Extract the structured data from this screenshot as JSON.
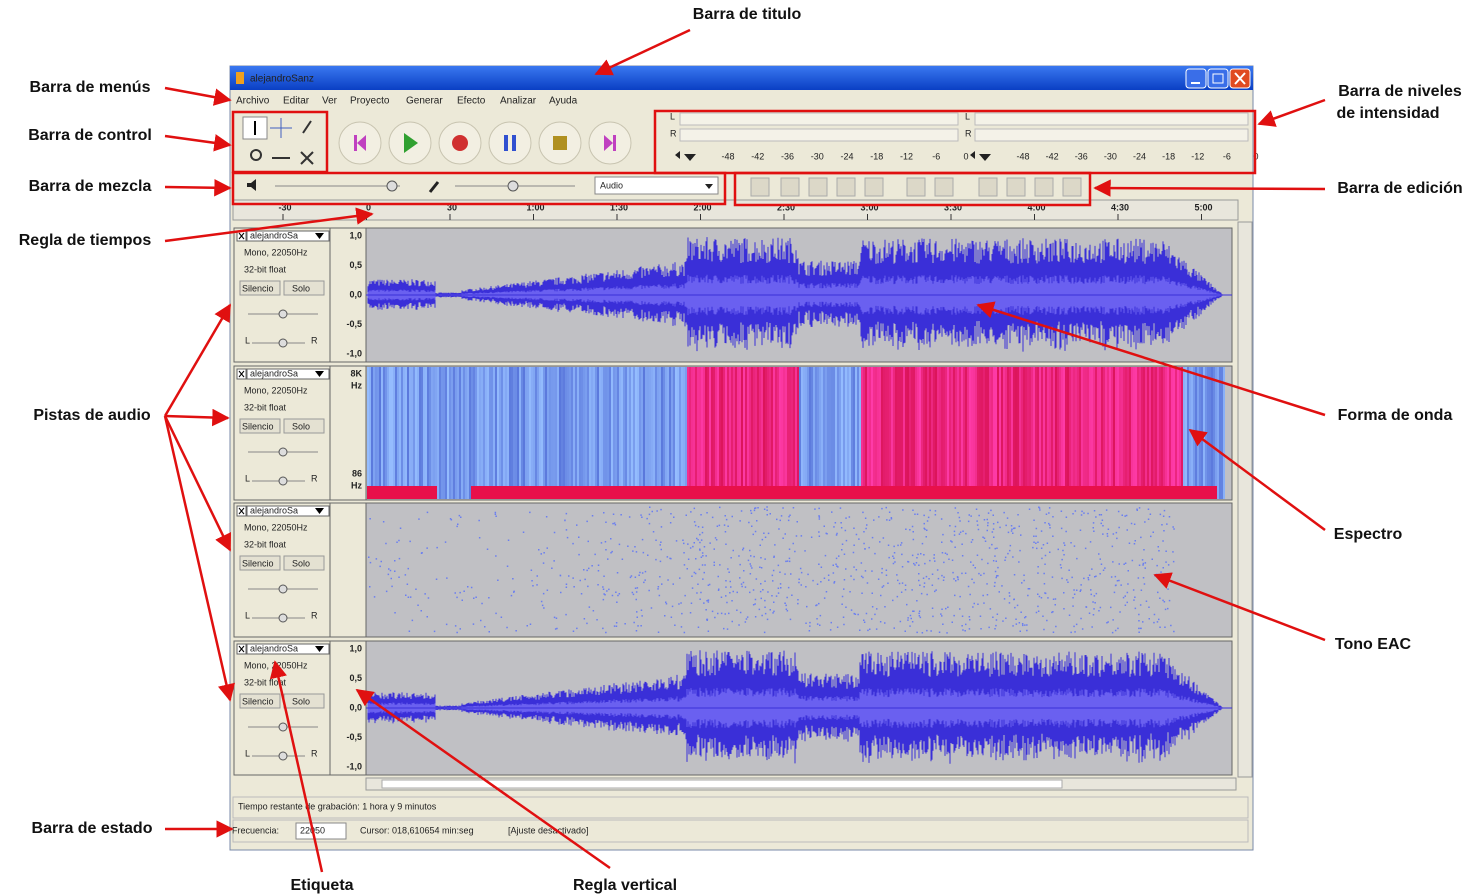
{
  "annotations": {
    "title_bar": "Barra de titulo",
    "menu_bar": "Barra de menús",
    "control_bar": "Barra de control",
    "mixer_bar": "Barra de mezcla",
    "time_ruler": "Regla de tiempos",
    "audio_tracks": "Pistas de audio",
    "status_bar": "Barra de estado",
    "label": "Etiqueta",
    "vertical_ruler": "Regla vertical",
    "meter_bar": [
      "Barra de niveles",
      "de intensidad"
    ],
    "edit_bar": "Barra de edición",
    "waveform": "Forma de onda",
    "spectrum": "Espectro",
    "eac_tone": "Tono EAC"
  },
  "window": {
    "title": "alejandroSanz",
    "menu": [
      "Archivo",
      "Editar",
      "Ver",
      "Proyecto",
      "Generar",
      "Efecto",
      "Analizar",
      "Ayuda"
    ],
    "meters": [
      {
        "channels": [
          "L",
          "R"
        ],
        "ticks": [
          "-48",
          "-42",
          "-36",
          "-30",
          "-24",
          "-18",
          "-12",
          "-6",
          "0"
        ]
      },
      {
        "channels": [
          "L",
          "R"
        ],
        "ticks": [
          "-48",
          "-42",
          "-36",
          "-30",
          "-24",
          "-18",
          "-12",
          "-6",
          "0"
        ]
      }
    ],
    "mixer_source": "Audio",
    "ruler": [
      "-30",
      "0",
      "30",
      "1:00",
      "1:30",
      "2:00",
      "2:30",
      "3:00",
      "3:30",
      "4:00",
      "4:30",
      "5:00"
    ],
    "tracks": [
      {
        "name": "alejandroSa",
        "rate": "Mono, 22050Hz",
        "format": "32-bit float",
        "mute": "Silencio",
        "solo": "Solo",
        "pan": [
          "L",
          "R"
        ],
        "vruler": [
          "1,0",
          "0,5",
          "0,0",
          "-0,5",
          "-1,0"
        ]
      },
      {
        "name": "alejandroSa",
        "rate": "Mono, 22050Hz",
        "format": "32-bit float",
        "mute": "Silencio",
        "solo": "Solo",
        "pan": [
          "L",
          "R"
        ],
        "vruler": [
          "8K",
          "Hz",
          "86",
          "Hz"
        ]
      },
      {
        "name": "alejandroSa",
        "rate": "Mono, 22050Hz",
        "format": "32-bit float",
        "mute": "Silencio",
        "solo": "Solo",
        "pan": [
          "L",
          "R"
        ],
        "vruler": []
      },
      {
        "name": "alejandroSa",
        "rate": "Mono, 22050Hz",
        "format": "32-bit float",
        "mute": "Silencio",
        "solo": "Solo",
        "pan": [
          "L",
          "R"
        ],
        "vruler": [
          "1,0",
          "0,5",
          "0,0",
          "-0,5",
          "-1,0"
        ]
      }
    ],
    "status": {
      "recording": "Tiempo restante de grabación: 1 hora y 9 minutos",
      "rate_label": "Frecuencia:",
      "rate_value": "22050",
      "cursor": "Cursor: 018,610654 min:seg",
      "snap": "[Ajuste desactivado]"
    }
  }
}
